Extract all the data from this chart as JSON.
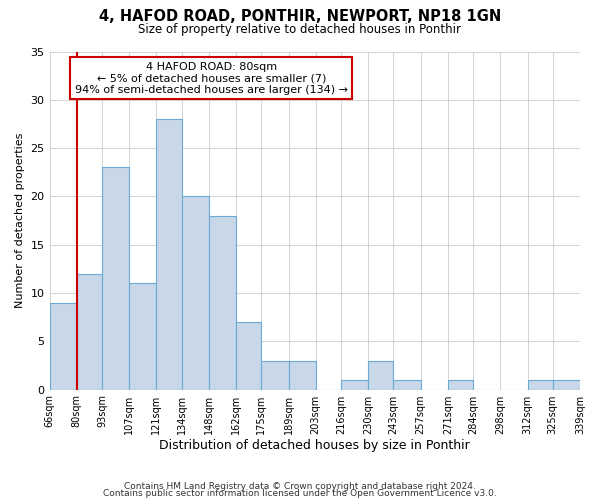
{
  "title": "4, HAFOD ROAD, PONTHIR, NEWPORT, NP18 1GN",
  "subtitle": "Size of property relative to detached houses in Ponthir",
  "xlabel": "Distribution of detached houses by size in Ponthir",
  "ylabel": "Number of detached properties",
  "bar_color": "#c8d8e8",
  "bar_edge_color": "#6aaad4",
  "bar_edge_width": 0.8,
  "bins": [
    66,
    80,
    93,
    107,
    121,
    134,
    148,
    162,
    175,
    189,
    203,
    216,
    230,
    243,
    257,
    271,
    284,
    298,
    312,
    325,
    339
  ],
  "bin_labels": [
    "66sqm",
    "80sqm",
    "93sqm",
    "107sqm",
    "121sqm",
    "134sqm",
    "148sqm",
    "162sqm",
    "175sqm",
    "189sqm",
    "203sqm",
    "216sqm",
    "230sqm",
    "243sqm",
    "257sqm",
    "271sqm",
    "284sqm",
    "298sqm",
    "312sqm",
    "325sqm",
    "339sqm"
  ],
  "values": [
    9,
    12,
    23,
    11,
    28,
    20,
    18,
    7,
    3,
    3,
    0,
    1,
    3,
    1,
    0,
    1,
    0,
    0,
    1,
    1
  ],
  "ylim": [
    0,
    35
  ],
  "yticks": [
    0,
    5,
    10,
    15,
    20,
    25,
    30,
    35
  ],
  "vline_x": 80,
  "vline_color": "#cc0000",
  "annotation_line1": "4 HAFOD ROAD: 80sqm",
  "annotation_line2": "← 5% of detached houses are smaller (7)",
  "annotation_line3": "94% of semi-detached houses are larger (134) →",
  "annotation_box_color": "white",
  "annotation_box_edge": "#cc0000",
  "footer1": "Contains HM Land Registry data © Crown copyright and database right 2024.",
  "footer2": "Contains public sector information licensed under the Open Government Licence v3.0.",
  "bg_color": "white",
  "grid_color": "#cccccc"
}
